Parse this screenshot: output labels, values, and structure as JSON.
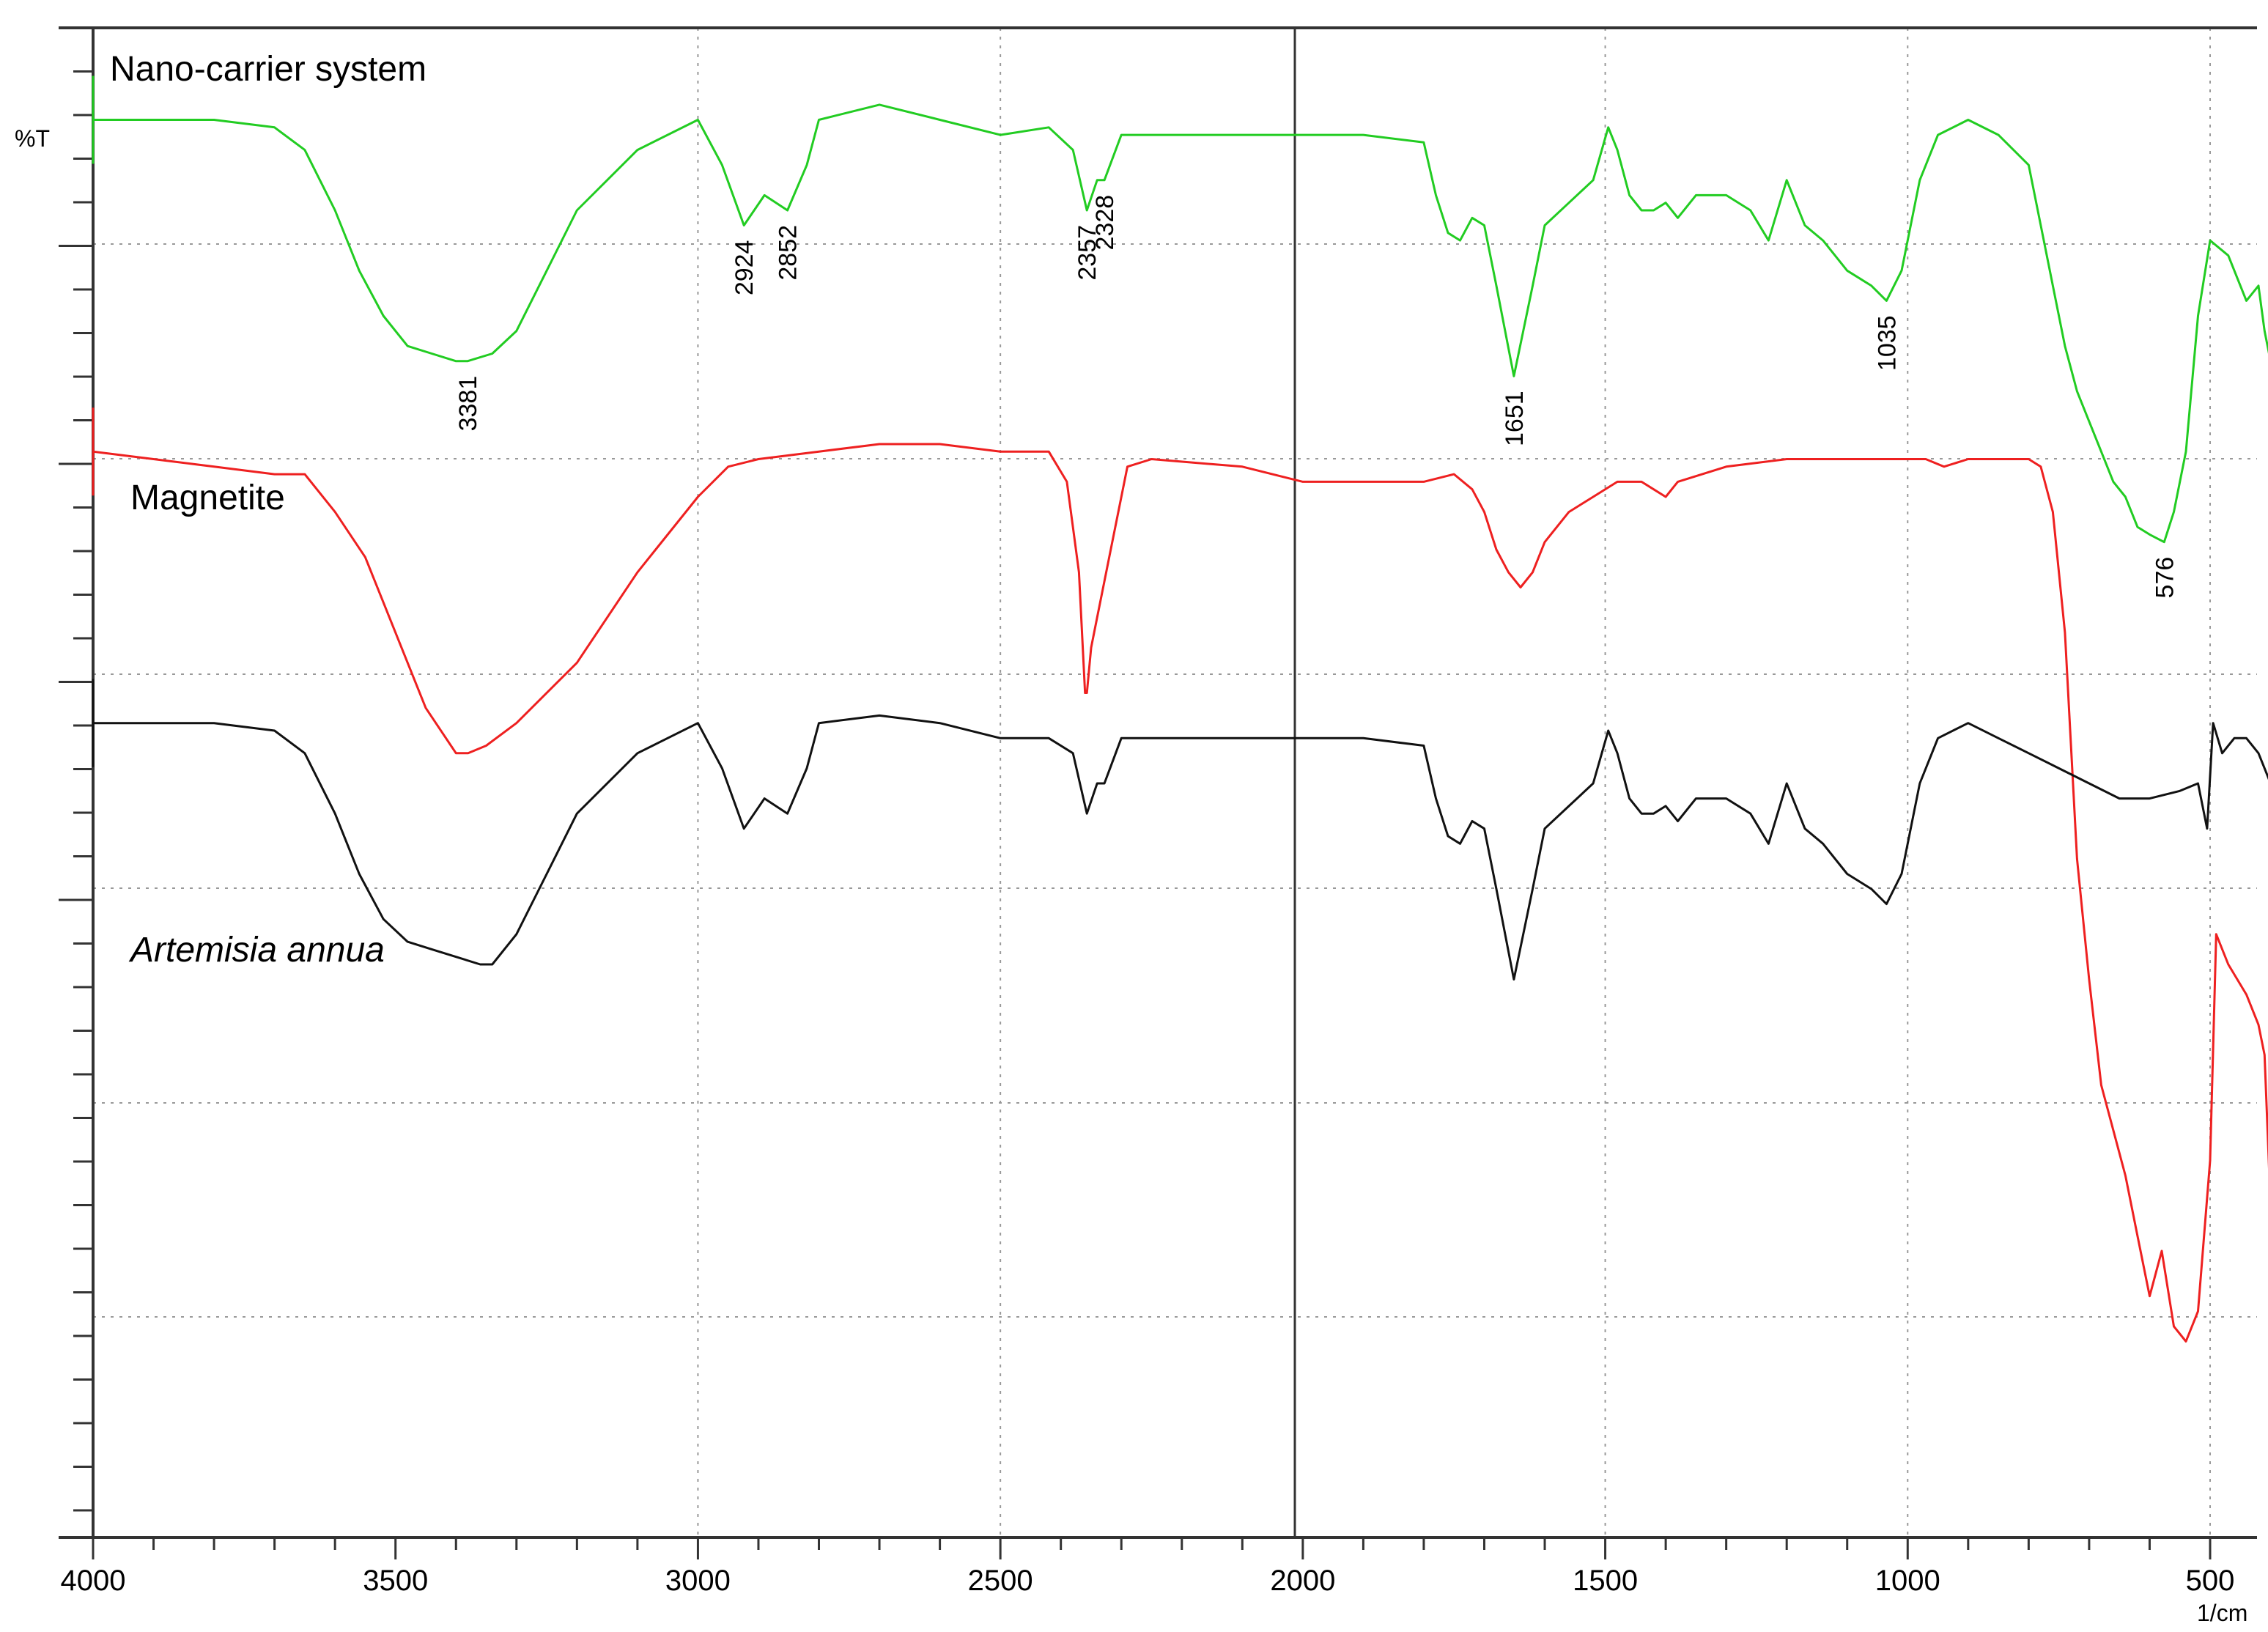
{
  "chart_data": {
    "type": "line",
    "title": "",
    "xlabel": "",
    "ylabel": "%T",
    "x_unit": "1/cm",
    "xlim": [
      4000,
      400
    ],
    "x_reversed": true,
    "x_ticks": [
      4000,
      3500,
      3000,
      2500,
      2000,
      1500,
      1000,
      500
    ],
    "x_tick_labels": [
      "4000",
      "3500",
      "3000",
      "2500",
      "2000",
      "1500",
      "1000",
      "500"
    ],
    "ylim": [
      0,
      100
    ],
    "grid": true,
    "colors": {
      "nano": "#22cc22",
      "magnetite": "#ee2020",
      "artemisia": "#111111",
      "axis": "#333333",
      "grid": "#999999"
    },
    "series": [
      {
        "name": "Nano-carrier system",
        "color": "#22cc22",
        "italic": false,
        "x": [
          4000,
          3900,
          3800,
          3700,
          3650,
          3600,
          3560,
          3520,
          3480,
          3440,
          3400,
          3381,
          3340,
          3300,
          3250,
          3200,
          3100,
          3000,
          2960,
          2924,
          2890,
          2852,
          2820,
          2800,
          2700,
          2600,
          2500,
          2420,
          2380,
          2357,
          2340,
          2328,
          2300,
          2250,
          2100,
          2000,
          1900,
          1800,
          1780,
          1760,
          1740,
          1720,
          1700,
          1680,
          1651,
          1620,
          1600,
          1560,
          1520,
          1495,
          1480,
          1460,
          1440,
          1420,
          1400,
          1380,
          1350,
          1300,
          1260,
          1230,
          1200,
          1170,
          1140,
          1100,
          1060,
          1035,
          1010,
          980,
          950,
          900,
          850,
          800,
          780,
          760,
          740,
          720,
          700,
          680,
          660,
          640,
          620,
          600,
          576,
          560,
          540,
          520,
          500,
          470,
          440,
          420,
          410,
          400
        ],
        "y": [
          94,
          94,
          94,
          93.5,
          92,
          88,
          84,
          81,
          79,
          78.5,
          78,
          78,
          78.5,
          80,
          84,
          88,
          92,
          94,
          91,
          87,
          89,
          88,
          91,
          94,
          95,
          94,
          93,
          93.5,
          92,
          88,
          90,
          90,
          93,
          93,
          93,
          93,
          93,
          92.5,
          89,
          86.5,
          86,
          87.5,
          87,
          83,
          77,
          83,
          87,
          88.5,
          90,
          93.5,
          92,
          89,
          88,
          88,
          88.5,
          87.5,
          89,
          89,
          88,
          86,
          90,
          87,
          86,
          84,
          83,
          82,
          84,
          90,
          93,
          94,
          93,
          91,
          87,
          83,
          79,
          76,
          74,
          72,
          70,
          69,
          67,
          66.5,
          66,
          68,
          72,
          81,
          86,
          85,
          82,
          83,
          80,
          78
        ]
      },
      {
        "name": "Magnetite",
        "color": "#ee2020",
        "italic": false,
        "x": [
          4000,
          3900,
          3800,
          3700,
          3650,
          3600,
          3550,
          3500,
          3450,
          3400,
          3380,
          3350,
          3300,
          3200,
          3100,
          3000,
          2950,
          2900,
          2800,
          2700,
          2600,
          2500,
          2420,
          2390,
          2370,
          2360,
          2357,
          2350,
          2340,
          2320,
          2290,
          2250,
          2100,
          2000,
          1900,
          1800,
          1750,
          1720,
          1700,
          1680,
          1660,
          1640,
          1620,
          1600,
          1560,
          1520,
          1480,
          1440,
          1420,
          1400,
          1380,
          1300,
          1200,
          1100,
          1000,
          970,
          940,
          900,
          850,
          800,
          780,
          760,
          740,
          720,
          700,
          680,
          660,
          640,
          620,
          600,
          580,
          560,
          540,
          520,
          500,
          490,
          470,
          440,
          420,
          410,
          400
        ],
        "y": [
          72,
          71.5,
          71,
          70.5,
          70.5,
          68,
          65,
          60,
          55,
          52,
          52,
          52.5,
          54,
          58,
          64,
          69,
          71,
          71.5,
          72,
          72.5,
          72.5,
          72,
          72,
          70,
          64,
          56,
          56,
          59,
          61,
          65,
          71,
          71.5,
          71,
          70,
          70,
          70,
          70.5,
          69.5,
          68,
          65.5,
          64,
          63,
          64,
          66,
          68,
          69,
          70,
          70,
          69.5,
          69,
          70,
          71,
          71.5,
          71.5,
          71.5,
          71.5,
          71,
          71.5,
          71.5,
          71.5,
          71,
          68,
          60,
          45,
          37,
          30,
          27,
          24,
          20,
          16,
          19,
          14,
          13,
          15,
          25,
          40,
          38,
          36,
          34,
          32,
          22
        ]
      },
      {
        "name": "Artemisia annua",
        "color": "#111111",
        "italic": true,
        "x": [
          4000,
          3900,
          3800,
          3700,
          3650,
          3600,
          3560,
          3520,
          3480,
          3440,
          3400,
          3360,
          3340,
          3300,
          3250,
          3200,
          3100,
          3000,
          2960,
          2924,
          2890,
          2852,
          2820,
          2800,
          2700,
          2600,
          2500,
          2420,
          2380,
          2357,
          2340,
          2328,
          2300,
          2250,
          2100,
          2000,
          1900,
          1800,
          1780,
          1760,
          1740,
          1720,
          1700,
          1680,
          1651,
          1620,
          1600,
          1560,
          1520,
          1495,
          1480,
          1460,
          1440,
          1420,
          1400,
          1380,
          1350,
          1300,
          1260,
          1230,
          1200,
          1170,
          1140,
          1100,
          1060,
          1035,
          1010,
          980,
          950,
          900,
          850,
          800,
          750,
          700,
          650,
          600,
          550,
          520,
          505,
          495,
          480,
          460,
          440,
          420,
          410,
          400
        ],
        "y": [
          54,
          54,
          54,
          53.5,
          52,
          48,
          44,
          41,
          39.5,
          39,
          38.5,
          38,
          38,
          40,
          44,
          48,
          52,
          54,
          51,
          47,
          49,
          48,
          51,
          54,
          54.5,
          54,
          53,
          53,
          52,
          48,
          50,
          50,
          53,
          53,
          53,
          53,
          53,
          52.5,
          49,
          46.5,
          46,
          47.5,
          47,
          43,
          37,
          43,
          47,
          48.5,
          50,
          53.5,
          52,
          49,
          48,
          48,
          48.5,
          47.5,
          49,
          49,
          48,
          46,
          50,
          47,
          46,
          44,
          43,
          42,
          44,
          50,
          53,
          54,
          53,
          52,
          51,
          50,
          49,
          49,
          49.5,
          50,
          47,
          54,
          52,
          53,
          53,
          52,
          51,
          50
        ]
      }
    ],
    "peak_labels": [
      {
        "text": "3381",
        "x": 3381,
        "series": 0
      },
      {
        "text": "2924",
        "x": 2924,
        "series": 0
      },
      {
        "text": "2852",
        "x": 2852,
        "series": 0
      },
      {
        "text": "2357",
        "x": 2357,
        "series": 0
      },
      {
        "text": "2328",
        "x": 2328,
        "series": 0
      },
      {
        "text": "1651",
        "x": 1651,
        "series": 0
      },
      {
        "text": "1035",
        "x": 1035,
        "series": 0
      },
      {
        "text": "576",
        "x": 576,
        "series": 0
      }
    ]
  }
}
